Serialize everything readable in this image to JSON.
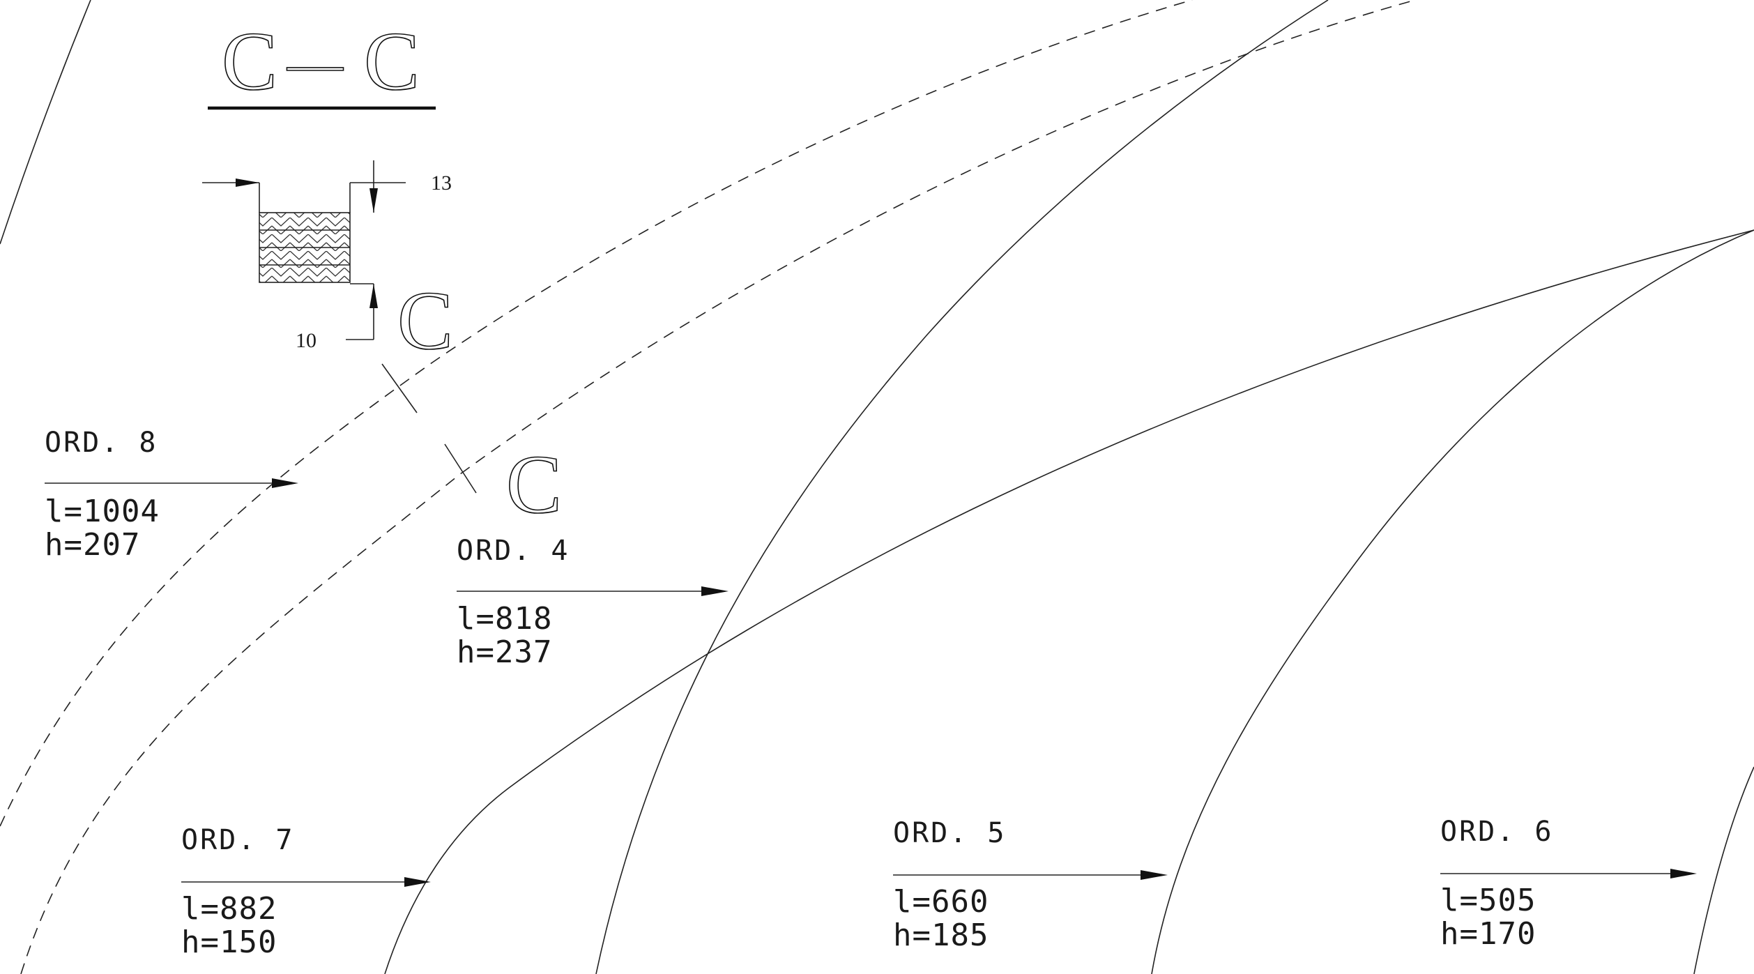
{
  "section": {
    "title_left": "C",
    "title_dash": "—",
    "title_right": "C",
    "dim_top": "13",
    "dim_bottom": "10",
    "cut_letter_1": "C",
    "cut_letter_2": "C"
  },
  "ordinates": [
    {
      "label": "ORD. 8",
      "l": "l=1004",
      "h": "h=207"
    },
    {
      "label": "ORD. 4",
      "l": "l=818",
      "h": "h=237"
    },
    {
      "label": "ORD. 7",
      "l": "l=882",
      "h": "h=150"
    },
    {
      "label": "ORD. 5",
      "l": "l=660",
      "h": "h=185"
    },
    {
      "label": "ORD. 6",
      "l": "l=505",
      "h": "h=170"
    }
  ]
}
